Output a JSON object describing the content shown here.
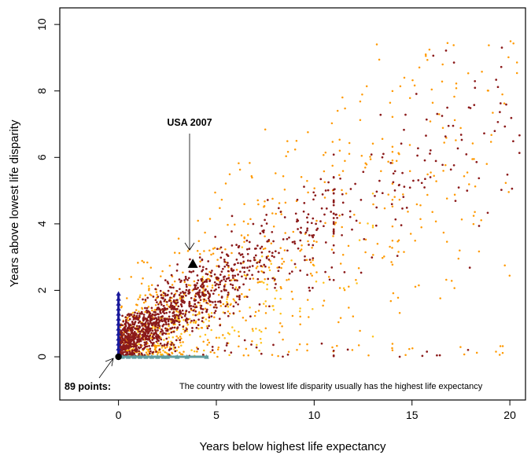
{
  "chart_data": {
    "type": "scatter",
    "title": "",
    "xlabel": "Years below highest life expectancy",
    "ylabel": "Years above lowest life disparity",
    "xlim": [
      -3,
      20.8
    ],
    "ylim": [
      -1.3,
      10.5
    ],
    "xticks": [
      "0",
      "5",
      "10",
      "15",
      "20"
    ],
    "yticks": [
      "0",
      "2",
      "4",
      "6",
      "8",
      "10"
    ],
    "grid": false,
    "legend": "none",
    "colors": {
      "dark_series": "#8b1a1a",
      "orange_series": "#ff9900",
      "yellow_series": "#ffc21a",
      "blue_markers": "#1a1a9c",
      "teal_markers": "#5f9ea0",
      "highlight": "#000000"
    },
    "clusters": [
      {
        "series": "dark",
        "count": 1400,
        "x_range": [
          0,
          20.5
        ],
        "trend_slope": 0.36,
        "spread": 0.7,
        "density": "concentrated x 0-9"
      },
      {
        "series": "orange",
        "count": 650,
        "x_range": [
          0,
          20.5
        ],
        "trend_slope": 0.34,
        "spread": 1.6,
        "density": "sparser, extends to x 20"
      },
      {
        "series": "yellow",
        "count": 300,
        "x_range": [
          0,
          13
        ],
        "trend_slope": 0.2,
        "spread": 0.8,
        "density": "lower band"
      }
    ],
    "blue_markers": {
      "x": 0,
      "y_values": [
        0.1,
        0.25,
        0.4,
        0.55,
        0.7,
        0.85,
        1.0,
        1.15,
        1.3,
        1.45,
        1.6,
        1.75,
        1.9
      ],
      "shape": "triangle"
    },
    "teal_markers": {
      "y": 0,
      "x_values": [
        0.2,
        0.5,
        0.8,
        1.1,
        1.4,
        1.7,
        2.0,
        2.3,
        2.5,
        3.0,
        3.5,
        4.5
      ],
      "shape": "triangle"
    },
    "highlight_points": [
      {
        "x": 0,
        "y": 0,
        "shape": "circle"
      },
      {
        "x": 3.8,
        "y": 2.8,
        "shape": "triangle"
      }
    ],
    "annotations": [
      {
        "text": "USA 2007",
        "x": 3.8,
        "y": 2.8
      },
      {
        "text": "89 points:",
        "x": 0,
        "y": 0
      },
      {
        "text": "The country with the lowest life disparity usually has the highest life expectancy"
      }
    ]
  }
}
